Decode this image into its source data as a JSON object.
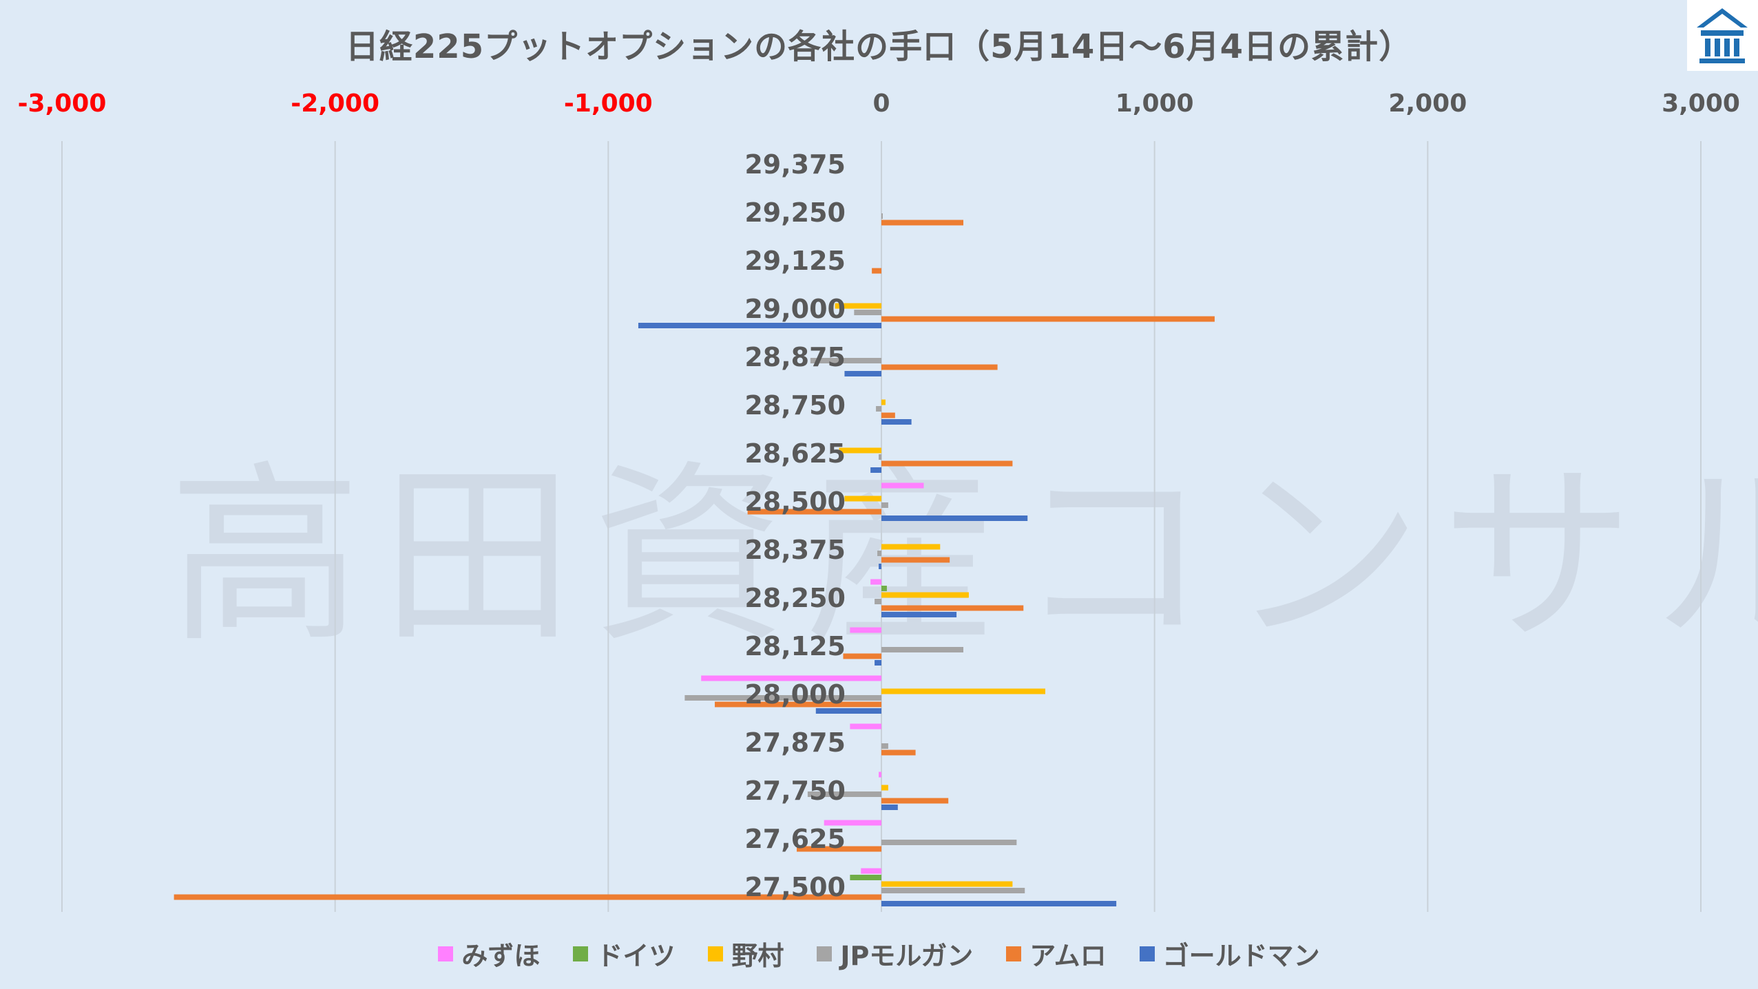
{
  "chart_data": {
    "type": "bar",
    "orientation": "horizontal",
    "title": "日経225プットオプションの各社の手口（5月14日～6月4日の累計）",
    "watermark": "高田資産コンサル",
    "xlim": [
      -3000,
      3000
    ],
    "x_ticks": [
      "-3,000",
      "-2,000",
      "-1,000",
      "0",
      "1,000",
      "2,000",
      "3,000"
    ],
    "x_tick_values": [
      -3000,
      -2000,
      -1000,
      0,
      1000,
      2000,
      3000
    ],
    "negative_tick_color": "#ff0000",
    "grid": true,
    "legend_position": "bottom",
    "categories": [
      "29,375",
      "29,250",
      "29,125",
      "29,000",
      "28,875",
      "28,750",
      "28,625",
      "28,500",
      "28,375",
      "28,250",
      "28,125",
      "28,000",
      "27,875",
      "27,750",
      "27,625",
      "27,500"
    ],
    "series": [
      {
        "name": "みずほ",
        "color": "#ff80ff",
        "values": [
          0,
          0,
          0,
          0,
          0,
          0,
          0,
          155,
          0,
          -40,
          -115,
          -660,
          -115,
          -10,
          -210,
          -75
        ]
      },
      {
        "name": "ドイツ",
        "color": "#70ad47",
        "values": [
          0,
          0,
          0,
          0,
          0,
          0,
          0,
          0,
          0,
          20,
          0,
          0,
          0,
          0,
          0,
          -115
        ]
      },
      {
        "name": "野村",
        "color": "#ffc000",
        "values": [
          0,
          0,
          0,
          -170,
          0,
          15,
          -155,
          -135,
          215,
          320,
          0,
          600,
          0,
          25,
          0,
          480
        ]
      },
      {
        "name": "JPモルガン",
        "color": "#a5a5a5",
        "values": [
          0,
          5,
          0,
          -100,
          -260,
          -20,
          -10,
          25,
          -15,
          -25,
          300,
          -720,
          25,
          -270,
          495,
          525
        ]
      },
      {
        "name": "アムロ",
        "color": "#ed7d31",
        "values": [
          0,
          300,
          -35,
          1220,
          425,
          50,
          480,
          -490,
          250,
          520,
          -140,
          -610,
          125,
          245,
          -310,
          -2590
        ]
      },
      {
        "name": "ゴールドマン",
        "color": "#4472c4",
        "values": [
          0,
          0,
          0,
          -890,
          -135,
          110,
          -40,
          535,
          -10,
          275,
          -25,
          -240,
          0,
          60,
          0,
          860
        ]
      }
    ]
  }
}
